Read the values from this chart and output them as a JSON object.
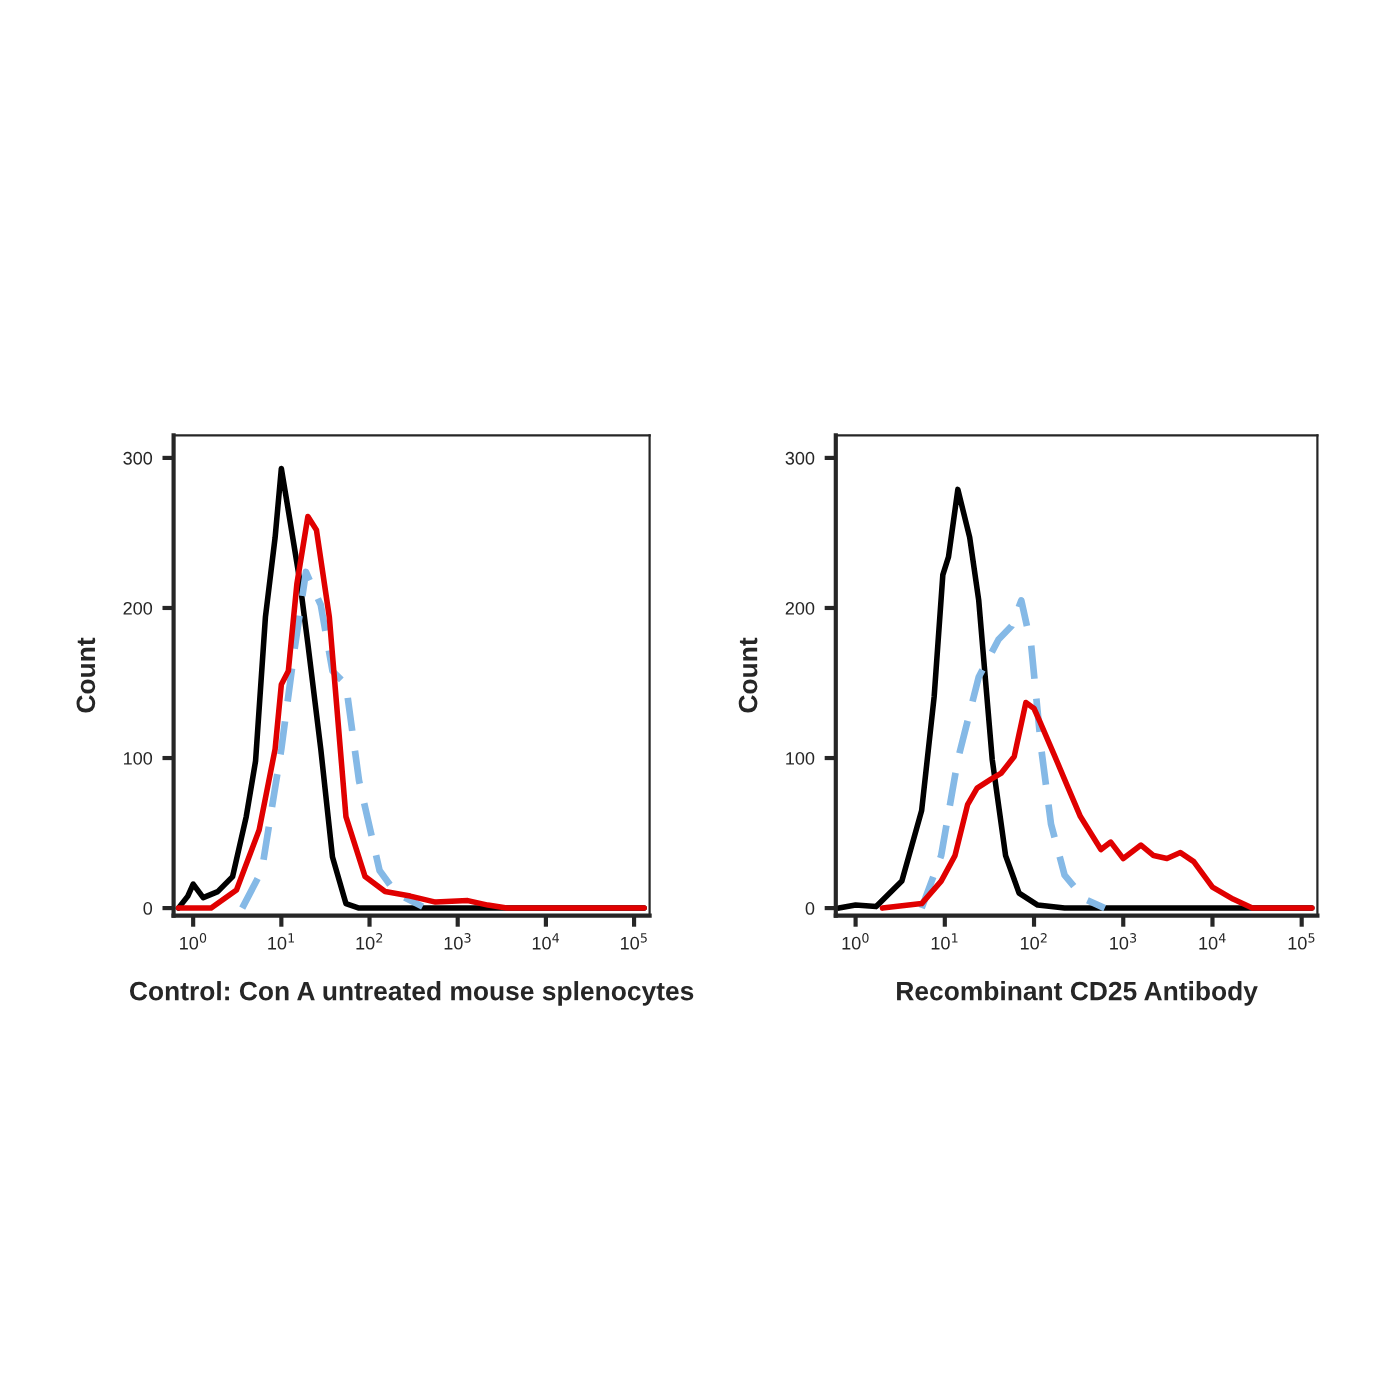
{
  "chart_data": [
    {
      "type": "line",
      "xlabel": "Control: Con A untreated mouse splenocytes",
      "ylabel": "Count",
      "log": "x",
      "xlim": [
        0.6,
        150000
      ],
      "ylim": [
        -5,
        315
      ],
      "xticks": [
        {
          "value": 1,
          "label": "10$^{0}$"
        },
        {
          "value": 10,
          "label": "10$^{1}$"
        },
        {
          "value": 100,
          "label": "10$^{2}$"
        },
        {
          "value": 1000,
          "label": "10$^{3}$"
        },
        {
          "value": 10000,
          "label": "10$^{4}$"
        },
        {
          "value": 100000,
          "label": "10$^{5}$"
        }
      ],
      "yticks": [
        0,
        100,
        200,
        300
      ],
      "series": [
        {
          "color": "#000000",
          "line_style": "solid",
          "x": [
            0.68,
            0.87,
            1,
            1.3,
            1.9,
            2.8,
            4,
            5.1,
            6.6,
            8.5,
            10,
            12,
            16,
            20,
            28,
            38,
            54,
            76,
            130000
          ],
          "values": [
            0,
            8,
            16,
            7,
            11,
            21,
            61,
            98,
            194,
            247,
            293,
            265,
            220,
            176,
            106,
            34,
            3,
            0,
            0
          ]
        },
        {
          "color": "#85b9e6",
          "line_style": "dashed",
          "x": [
            3.6,
            6,
            10,
            14,
            19,
            28,
            38,
            54,
            76,
            130,
            200,
            400
          ],
          "values": [
            0,
            25,
            106,
            171,
            224,
            202,
            158,
            149,
            85,
            25,
            10,
            1
          ]
        },
        {
          "color": "#e00000",
          "line_style": "solid",
          "x": [
            0.68,
            1.6,
            3.1,
            5.6,
            8.5,
            10,
            12,
            15,
            20,
            25,
            35,
            54,
            89,
            150,
            290,
            560,
            1300,
            2200,
            3600,
            130000
          ],
          "values": [
            0,
            0,
            12,
            52,
            106,
            149,
            158,
            216,
            261,
            252,
            194,
            61,
            21,
            11,
            8,
            4,
            5,
            2,
            0,
            0
          ]
        }
      ]
    },
    {
      "type": "line",
      "xlabel": "Recombinant CD25 Antibody",
      "ylabel": "Count",
      "log": "x",
      "xlim": [
        0.6,
        150000
      ],
      "ylim": [
        -5,
        315
      ],
      "xticks": [
        {
          "value": 1,
          "label": "10$^{0}$"
        },
        {
          "value": 10,
          "label": "10$^{1}$"
        },
        {
          "value": 100,
          "label": "10$^{2}$"
        },
        {
          "value": 1000,
          "label": "10$^{3}$"
        },
        {
          "value": 10000,
          "label": "10$^{4}$"
        },
        {
          "value": 100000,
          "label": "10$^{5}$"
        }
      ],
      "yticks": [
        0,
        100,
        200,
        300
      ],
      "series": [
        {
          "color": "#000000",
          "line_style": "solid",
          "x": [
            0.65,
            1,
            1.7,
            3.3,
            5.5,
            7.6,
            9.5,
            11,
            14,
            19,
            24,
            34,
            48,
            68,
            110,
            220,
            130000
          ],
          "values": [
            0,
            2,
            1,
            18,
            65,
            141,
            222,
            234,
            279,
            247,
            205,
            99,
            35,
            10,
            2,
            0,
            0
          ]
        },
        {
          "color": "#85b9e6",
          "line_style": "dashed",
          "x": [
            5.5,
            9.1,
            14,
            24,
            40,
            56,
            72,
            93,
            120,
            155,
            220,
            370,
            620
          ],
          "values": [
            0,
            35,
            99,
            154,
            179,
            188,
            205,
            175,
            107,
            56,
            22,
            6,
            0
          ]
        },
        {
          "color": "#e00000",
          "line_style": "solid",
          "x": [
            2,
            5.5,
            9.1,
            13,
            18,
            23,
            33,
            43,
            60,
            81,
            100,
            117,
            166,
            234,
            331,
            562,
            724,
            1000,
            1580,
            2190,
            3090,
            4370,
            6170,
            10000,
            17000,
            28000,
            130000
          ],
          "values": [
            0,
            3,
            18,
            35,
            69,
            80,
            86,
            90,
            101,
            137,
            133,
            124,
            103,
            82,
            61,
            39,
            44,
            33,
            42,
            35,
            33,
            37,
            31,
            14,
            6,
            0,
            0
          ]
        }
      ]
    }
  ]
}
